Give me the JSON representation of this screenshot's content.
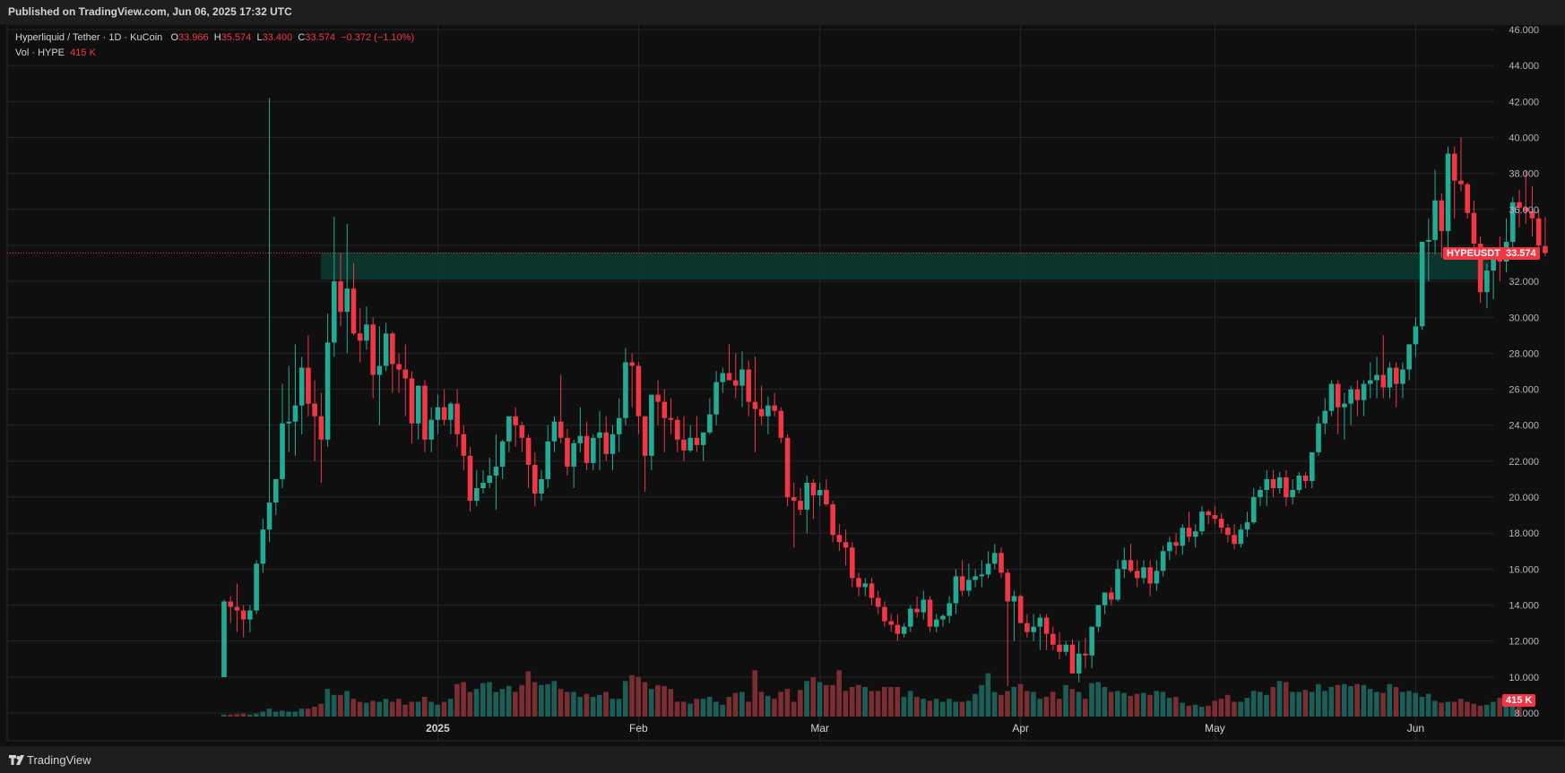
{
  "header": {
    "published": "Published on TradingView.com, Jun 06, 2025 17:32 UTC"
  },
  "legend": {
    "symbol": "Hyperliquid / Tether · 1D · KuCoin",
    "o_label": "O",
    "o": "33.966",
    "h_label": "H",
    "h": "35.574",
    "l_label": "L",
    "l": "33.400",
    "c_label": "C",
    "c": "33.574",
    "change": "−0.372 (−1.10%)",
    "vol_label": "Vol · HYPE",
    "vol": "415 K"
  },
  "tags": {
    "symbol": "HYPEUSDT",
    "price": "33.574",
    "volume": "415 K"
  },
  "footer": {
    "brand": "TradingView",
    "logo": "tradingview-logo-icon"
  },
  "colors": {
    "up": "#22ab94",
    "down": "#f23645",
    "up_vol": "#1b5e57",
    "down_vol": "#7a2e31",
    "zone": "#0b3b32",
    "bg": "#0f0f0f",
    "grid": "#262626"
  },
  "chart_data": {
    "type": "candlestick",
    "title": "Hyperliquid / Tether · 1D · KuCoin",
    "y_axis": {
      "min": 8,
      "max": 46,
      "ticks": [
        "46.000",
        "44.000",
        "42.000",
        "40.000",
        "38.000",
        "36.000",
        "34.000",
        "32.000",
        "30.000",
        "28.000",
        "26.000",
        "24.000",
        "22.000",
        "20.000",
        "18.000",
        "16.000",
        "14.000",
        "12.000",
        "10.000",
        "8.000"
      ]
    },
    "x_axis": {
      "ticks": [
        {
          "label": "2025",
          "date": "2025-01-01"
        },
        {
          "label": "Feb",
          "date": "2025-02-01"
        },
        {
          "label": "Mar",
          "date": "2025-03-01"
        },
        {
          "label": "Apr",
          "date": "2025-04-01"
        },
        {
          "label": "May",
          "date": "2025-05-01"
        },
        {
          "label": "Jun",
          "date": "2025-06-01"
        }
      ]
    },
    "first_date": "2024-11-29",
    "last_date": "2025-06-06",
    "zone": {
      "from": 32.1,
      "to": 33.6,
      "start_date": "2024-12-14"
    },
    "last_price": 33.574,
    "ohlc": [
      [
        10,
        14.3,
        10,
        14.2
      ],
      [
        14.2,
        14.5,
        13,
        13.9
      ],
      [
        13.9,
        15.2,
        12.5,
        13.7
      ],
      [
        13.7,
        14,
        12.2,
        13.2
      ],
      [
        13.2,
        14,
        12.5,
        13.7
      ],
      [
        13.7,
        16.5,
        13.5,
        16.3
      ],
      [
        16.3,
        18.8,
        15.8,
        18.2
      ],
      [
        18.2,
        42.2,
        17.5,
        19.7
      ],
      [
        19.7,
        21,
        19,
        21
      ],
      [
        21,
        26.3,
        20.5,
        24.1
      ],
      [
        24.1,
        27.3,
        22.5,
        24.2
      ],
      [
        24.2,
        28.5,
        22.3,
        25.1
      ],
      [
        25.1,
        27.8,
        23.5,
        27.2
      ],
      [
        27.2,
        29,
        24.5,
        25.2
      ],
      [
        25.2,
        26.5,
        22,
        24.5
      ],
      [
        24.5,
        25.8,
        20.8,
        23.2
      ],
      [
        23.2,
        30.2,
        22.8,
        28.6
      ],
      [
        28.6,
        35.6,
        27.8,
        32
      ],
      [
        32,
        33.6,
        29.5,
        30.3
      ],
      [
        30.3,
        35.2,
        28,
        31.6
      ],
      [
        31.6,
        33,
        29,
        29.1
      ],
      [
        29.1,
        30.5,
        27.5,
        28.7
      ],
      [
        28.7,
        30.6,
        28.2,
        29.6
      ],
      [
        29.6,
        30,
        25.5,
        26.8
      ],
      [
        26.8,
        29.5,
        24,
        27.3
      ],
      [
        27.3,
        29.7,
        27,
        29.1
      ],
      [
        29.1,
        29.2,
        25.8,
        27.4
      ],
      [
        27.4,
        28,
        25.8,
        27.1
      ],
      [
        27.1,
        28.5,
        24.5,
        26.6
      ],
      [
        26.6,
        27,
        23,
        24.1
      ],
      [
        24.1,
        26.2,
        23.2,
        26.2
      ],
      [
        26.2,
        26.5,
        22.5,
        23.2
      ],
      [
        23.2,
        25,
        22.5,
        24.3
      ],
      [
        24.3,
        25.7,
        23.5,
        25
      ],
      [
        25,
        26,
        24,
        24.3
      ],
      [
        24.3,
        25.3,
        23.5,
        25.2
      ],
      [
        25.2,
        26,
        22.8,
        23.5
      ],
      [
        23.5,
        24,
        21.5,
        22.3
      ],
      [
        22.3,
        22.8,
        19.2,
        19.8
      ],
      [
        19.8,
        21.5,
        19.5,
        20.5
      ],
      [
        20.5,
        21.5,
        20.2,
        20.8
      ],
      [
        20.8,
        22.2,
        20.5,
        21.2
      ],
      [
        21.2,
        23.5,
        19.3,
        21.7
      ],
      [
        21.7,
        23.2,
        21,
        23.1
      ],
      [
        23.1,
        24.5,
        22.5,
        24.5
      ],
      [
        24.5,
        25,
        22.8,
        24
      ],
      [
        24,
        24.2,
        22.5,
        23.3
      ],
      [
        23.3,
        23.5,
        20.5,
        21.8
      ],
      [
        21.8,
        22.5,
        19.5,
        20.2
      ],
      [
        20.2,
        21.5,
        19.8,
        21
      ],
      [
        21,
        24,
        20.5,
        23.1
      ],
      [
        23.1,
        24.5,
        22.5,
        24.2
      ],
      [
        24.2,
        26.8,
        23,
        23.3
      ],
      [
        23.3,
        23.8,
        21.2,
        21.7
      ],
      [
        21.7,
        23.2,
        20.5,
        23
      ],
      [
        23,
        25,
        22.5,
        23.4
      ],
      [
        23.4,
        24.2,
        21.5,
        21.9
      ],
      [
        21.9,
        23.5,
        21.5,
        23.3
      ],
      [
        23.3,
        24.8,
        21.5,
        23.6
      ],
      [
        23.6,
        24.5,
        22,
        22.4
      ],
      [
        22.4,
        24,
        21.5,
        23.5
      ],
      [
        23.5,
        25.5,
        22.5,
        24.4
      ],
      [
        24.4,
        28.3,
        24,
        27.5
      ],
      [
        27.5,
        28,
        25,
        27.3
      ],
      [
        27.3,
        27.5,
        23.5,
        24.5
      ],
      [
        24.5,
        24.5,
        20.3,
        22.3
      ],
      [
        22.3,
        25.5,
        21.5,
        25.7
      ],
      [
        25.7,
        26.5,
        24,
        25.3
      ],
      [
        25.3,
        26,
        22.5,
        24.4
      ],
      [
        24.4,
        25.5,
        23.5,
        24.3
      ],
      [
        24.3,
        24.5,
        22.5,
        23.2
      ],
      [
        23.2,
        24.5,
        22,
        22.6
      ],
      [
        22.6,
        24,
        22.5,
        23.3
      ],
      [
        23.3,
        24.5,
        22.5,
        22.9
      ],
      [
        22.9,
        23.5,
        22,
        23.6
      ],
      [
        23.6,
        25.5,
        23.5,
        24.6
      ],
      [
        24.6,
        27,
        24,
        26.4
      ],
      [
        26.4,
        27.2,
        25.8,
        26.9
      ],
      [
        26.9,
        28.5,
        26.5,
        26.5
      ],
      [
        26.5,
        28,
        25.5,
        26.2
      ],
      [
        26.2,
        28.1,
        25,
        27.1
      ],
      [
        27.1,
        27.6,
        24.5,
        25.3
      ],
      [
        25.3,
        27.8,
        22.5,
        24.9
      ],
      [
        24.9,
        26.2,
        24,
        24.5
      ],
      [
        24.5,
        25.6,
        23.5,
        25.1
      ],
      [
        25.1,
        25.8,
        24.5,
        24.8
      ],
      [
        24.8,
        25,
        23,
        23.3
      ],
      [
        23.3,
        23.5,
        19.5,
        20
      ],
      [
        20,
        20.8,
        17.2,
        19.8
      ],
      [
        19.8,
        20.5,
        19,
        19.3
      ],
      [
        19.3,
        21.2,
        18,
        20.8
      ],
      [
        20.8,
        21,
        18.8,
        20.1
      ],
      [
        20.1,
        20.8,
        19.5,
        20.4
      ],
      [
        20.4,
        21,
        19.5,
        19.6
      ],
      [
        19.6,
        19.8,
        17.5,
        17.9
      ],
      [
        17.9,
        18.5,
        17,
        17.5
      ],
      [
        17.5,
        18.2,
        16.2,
        17.2
      ],
      [
        17.2,
        17.5,
        15,
        15.5
      ],
      [
        15.5,
        15.8,
        14.5,
        15
      ],
      [
        15,
        15.5,
        14.5,
        15.2
      ],
      [
        15.2,
        15.5,
        14,
        14.4
      ],
      [
        14.4,
        14.8,
        13.5,
        13.9
      ],
      [
        13.9,
        14.2,
        12.8,
        13.1
      ],
      [
        13.1,
        13.5,
        12.5,
        12.9
      ],
      [
        12.9,
        13.5,
        12,
        12.4
      ],
      [
        12.4,
        13,
        12.2,
        12.8
      ],
      [
        12.8,
        14,
        12.5,
        13.8
      ],
      [
        13.8,
        14.5,
        13.3,
        13.6
      ],
      [
        13.6,
        14.8,
        13.2,
        14.3
      ],
      [
        14.3,
        14.5,
        12.5,
        12.8
      ],
      [
        12.8,
        13.5,
        12.5,
        13.2
      ],
      [
        13.2,
        13.5,
        12.8,
        13.4
      ],
      [
        13.4,
        14.5,
        13,
        14.1
      ],
      [
        14.1,
        16,
        13.5,
        15.6
      ],
      [
        15.6,
        16.5,
        14.5,
        14.8
      ],
      [
        14.8,
        16.3,
        14.5,
        15.4
      ],
      [
        15.4,
        16,
        15,
        15.6
      ],
      [
        15.6,
        16.5,
        15,
        15.7
      ],
      [
        15.7,
        17,
        15.5,
        16.3
      ],
      [
        16.3,
        17.4,
        16,
        16.9
      ],
      [
        16.9,
        17.2,
        15.5,
        15.8
      ],
      [
        15.8,
        16,
        9.5,
        14.2
      ],
      [
        14.2,
        14.8,
        12,
        14.5
      ],
      [
        14.5,
        14.6,
        13,
        13
      ],
      [
        13,
        13.5,
        12.2,
        12.5
      ],
      [
        12.5,
        13.5,
        12,
        12.8
      ],
      [
        12.8,
        13.5,
        11.5,
        13.3
      ],
      [
        13.3,
        13.5,
        11.5,
        12.4
      ],
      [
        12.4,
        12.8,
        11.5,
        11.8
      ],
      [
        11.8,
        12.5,
        11,
        11.4
      ],
      [
        11.4,
        12,
        11.2,
        11.8
      ],
      [
        11.8,
        12.1,
        10.5,
        10.2
      ],
      [
        10.2,
        12,
        9.7,
        11.3
      ],
      [
        11.3,
        12.2,
        10.5,
        11.2
      ],
      [
        11.2,
        12.5,
        10.5,
        12.8
      ],
      [
        12.8,
        14,
        12.5,
        14
      ],
      [
        14,
        14.6,
        13.5,
        14.7
      ],
      [
        14.7,
        15,
        14,
        14.3
      ],
      [
        14.3,
        16.5,
        14.2,
        16
      ],
      [
        16,
        17.2,
        15.5,
        16.5
      ],
      [
        16.5,
        17.4,
        15.8,
        15.9
      ],
      [
        15.9,
        16.5,
        15,
        15.5
      ],
      [
        15.5,
        16.5,
        15.2,
        16.1
      ],
      [
        16.1,
        16.5,
        14.5,
        15.2
      ],
      [
        15.2,
        16.5,
        14.8,
        15.9
      ],
      [
        15.9,
        17.3,
        15.6,
        17
      ],
      [
        17,
        17.8,
        16.5,
        17.5
      ],
      [
        17.5,
        18,
        16.8,
        17.3
      ],
      [
        17.3,
        18.5,
        16.8,
        18.3
      ],
      [
        18.3,
        19.2,
        17.5,
        17.8
      ],
      [
        17.8,
        18.5,
        17.2,
        18.1
      ],
      [
        18.1,
        19.5,
        17.9,
        19.2
      ],
      [
        19.2,
        19.3,
        18.5,
        19
      ],
      [
        19,
        19.5,
        18.5,
        18.8
      ],
      [
        18.8,
        19.1,
        18,
        18.3
      ],
      [
        18.3,
        18.5,
        17.5,
        17.9
      ],
      [
        17.9,
        18.5,
        17.1,
        17.4
      ],
      [
        17.4,
        18.5,
        17.2,
        18.2
      ],
      [
        18.2,
        19.2,
        17.8,
        18.6
      ],
      [
        18.6,
        20.5,
        18.5,
        20
      ],
      [
        20,
        20.6,
        19.5,
        20.4
      ],
      [
        20.4,
        21.5,
        19.5,
        21
      ],
      [
        21,
        21.5,
        20,
        20.5
      ],
      [
        20.5,
        21.4,
        20.2,
        21.1
      ],
      [
        21.1,
        21.5,
        19.5,
        20
      ],
      [
        20,
        21,
        19.6,
        20.4
      ],
      [
        20.4,
        21.4,
        20.2,
        21.2
      ],
      [
        21.2,
        21.4,
        20.5,
        20.9
      ],
      [
        20.9,
        22.5,
        20.5,
        22.5
      ],
      [
        22.5,
        24.5,
        22.3,
        24.1
      ],
      [
        24.1,
        25.5,
        23.5,
        24.8
      ],
      [
        24.8,
        26.5,
        24.5,
        26.3
      ],
      [
        26.3,
        26.5,
        23.5,
        25
      ],
      [
        25,
        25.8,
        23.2,
        25.2
      ],
      [
        25.2,
        26.2,
        24,
        26
      ],
      [
        26,
        26.5,
        24.5,
        25.4
      ],
      [
        25.4,
        26.5,
        24.5,
        26.3
      ],
      [
        26.3,
        27.5,
        25.5,
        26.5
      ],
      [
        26.5,
        27.8,
        25.5,
        26.8
      ],
      [
        26.8,
        29,
        25.5,
        26.1
      ],
      [
        26.1,
        27.5,
        25.5,
        27.2
      ],
      [
        27.2,
        27.5,
        25,
        26.3
      ],
      [
        26.3,
        27.5,
        25.5,
        27.1
      ],
      [
        27.1,
        28.5,
        26.5,
        28.5
      ],
      [
        28.5,
        30,
        27.8,
        29.5
      ],
      [
        29.5,
        34,
        29.3,
        34.2
      ],
      [
        34.2,
        35.5,
        32,
        34.3
      ],
      [
        34.3,
        38.2,
        33.5,
        36.5
      ],
      [
        36.5,
        36.9,
        33.3,
        34.8
      ],
      [
        34.8,
        39.5,
        33.4,
        39.1
      ],
      [
        39.1,
        39.5,
        35.5,
        37.6
      ],
      [
        37.6,
        40,
        37,
        37.4
      ],
      [
        37.4,
        37.5,
        35.5,
        35.8
      ],
      [
        35.8,
        36.5,
        33.5,
        34.1
      ],
      [
        34.1,
        34.5,
        30.8,
        31.4
      ],
      [
        31.4,
        33,
        30.5,
        32.6
      ],
      [
        32.6,
        33.5,
        31,
        33.7
      ],
      [
        33.7,
        34.5,
        32,
        33.1
      ],
      [
        33.1,
        35.5,
        32.5,
        34.2
      ],
      [
        34.2,
        36.7,
        33.8,
        36.4
      ],
      [
        36.4,
        37.1,
        35,
        36.1
      ],
      [
        36.1,
        38.2,
        35.2,
        35.9
      ],
      [
        35.9,
        37.3,
        34.5,
        35.5
      ],
      [
        35.5,
        36,
        33.5,
        34
      ],
      [
        33.966,
        35.574,
        33.4,
        33.574
      ]
    ],
    "volume": [
      0.2,
      0.2,
      0.25,
      0.3,
      0.2,
      0.3,
      0.5,
      0.8,
      0.5,
      0.6,
      0.5,
      0.5,
      0.8,
      0.8,
      1,
      1.3,
      2.8,
      2.2,
      2.2,
      2.6,
      1.8,
      1.5,
      1.4,
      1.6,
      1.5,
      1.8,
      1.5,
      1.8,
      1.2,
      1.5,
      1.5,
      2,
      1.5,
      1.2,
      1.5,
      1.8,
      3.3,
      3.5,
      2.5,
      2.8,
      3.4,
      3.5,
      2.5,
      2.8,
      3.1,
      2.5,
      3.2,
      4.6,
      3.5,
      3.2,
      3.3,
      3.6,
      2.8,
      2.5,
      2.5,
      2,
      2.3,
      2,
      2.2,
      2.5,
      1.8,
      1.8,
      3.6,
      4.2,
      4,
      3.5,
      2.8,
      3.2,
      3.1,
      2.8,
      1.5,
      1.5,
      1.3,
      1.8,
      1.8,
      2,
      1.5,
      1.2,
      2,
      2.4,
      2.5,
      1.5,
      4.7,
      2.5,
      2.1,
      1.8,
      2.5,
      2.8,
      1.5,
      2.7,
      3.6,
      4,
      3.5,
      3.2,
      3.2,
      4.7,
      2.6,
      3,
      3.2,
      3,
      2.6,
      2.6,
      3,
      3,
      3,
      2,
      2.6,
      2,
      1.8,
      1.6,
      1.8,
      1.5,
      1.8,
      1.5,
      1.5,
      1.6,
      2.3,
      3.2,
      4.4,
      2.5,
      2.2,
      2.6,
      3,
      3.3,
      2.6,
      2.5,
      1.8,
      2,
      2.5,
      1.8,
      3.2,
      2.8,
      2.5,
      1.8,
      3.4,
      3.5,
      3,
      2.5,
      2.6,
      2.4,
      2.1,
      2.3,
      2.4,
      2.2,
      2.6,
      2.5,
      1.9,
      2.0,
      1.4,
      1.1,
      1.2,
      1.0,
      1.1,
      1.6,
      1.8,
      2.2,
      1.5,
      1.5,
      1.9,
      2.6,
      2.5,
      2.2,
      3,
      3.6,
      3.5,
      2.5,
      2.5,
      2.7,
      2.5,
      3.3,
      2.6,
      3,
      3.2,
      3.3,
      3.1,
      3.3,
      3.2,
      2.8,
      2.5,
      2.4,
      3.3,
      3.0,
      2.5,
      2.6,
      2.4,
      2.0,
      2.3,
      1.6,
      1.4,
      1.5,
      1.5,
      1.8,
      1.5,
      1.3,
      1.1,
      1.2,
      1.5,
      1.9,
      1.6,
      1.4,
      1.0
    ],
    "vol_scale_max": 8
  }
}
